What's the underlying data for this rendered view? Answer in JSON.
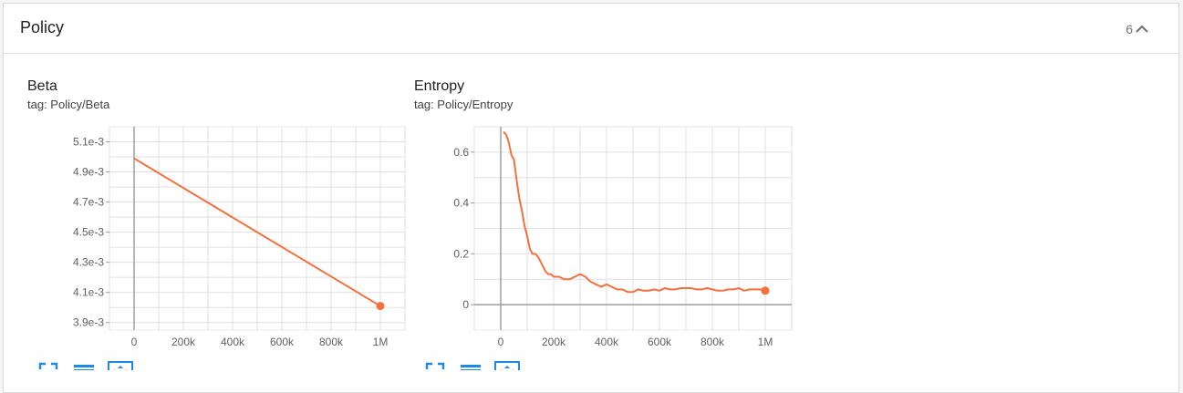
{
  "section": {
    "title": "Policy",
    "count": "6"
  },
  "charts": [
    {
      "title": "Beta",
      "tag": "tag: Policy/Beta",
      "color": "#f4703c",
      "chart_data": {
        "type": "line",
        "title": "Beta",
        "xlabel": "",
        "ylabel": "",
        "xlim": [
          -100000,
          1100000
        ],
        "ylim": [
          0.00385,
          0.0052
        ],
        "xticks": [
          0,
          200000,
          400000,
          600000,
          800000,
          1000000
        ],
        "xtick_labels": [
          "0",
          "200k",
          "400k",
          "600k",
          "800k",
          "1M"
        ],
        "yticks": [
          0.0039,
          0.0041,
          0.0043,
          0.0045,
          0.0047,
          0.0049,
          0.0051
        ],
        "ytick_labels": [
          "3.9e-3",
          "4.1e-3",
          "4.3e-3",
          "4.5e-3",
          "4.7e-3",
          "4.9e-3",
          "5.1e-3"
        ],
        "series": [
          {
            "name": "Policy/Beta",
            "x": [
              0,
              1000000
            ],
            "y": [
              0.00499,
              0.00401
            ]
          }
        ]
      }
    },
    {
      "title": "Entropy",
      "tag": "tag: Policy/Entropy",
      "color": "#f4703c",
      "chart_data": {
        "type": "line",
        "title": "Entropy",
        "xlabel": "",
        "ylabel": "",
        "xlim": [
          -100000,
          1100000
        ],
        "ylim": [
          -0.1,
          0.7
        ],
        "xticks": [
          0,
          200000,
          400000,
          600000,
          800000,
          1000000
        ],
        "xtick_labels": [
          "0",
          "200k",
          "400k",
          "600k",
          "800k",
          "1M"
        ],
        "yticks": [
          0,
          0.2,
          0.4,
          0.6
        ],
        "ytick_labels": [
          "0",
          "0.2",
          "0.4",
          "0.6"
        ],
        "series": [
          {
            "name": "Policy/Entropy",
            "x": [
              10000,
              20000,
              30000,
              40000,
              50000,
              60000,
              70000,
              80000,
              90000,
              100000,
              110000,
              120000,
              130000,
              140000,
              150000,
              160000,
              170000,
              180000,
              190000,
              200000,
              220000,
              240000,
              260000,
              280000,
              300000,
              320000,
              340000,
              360000,
              380000,
              400000,
              420000,
              440000,
              460000,
              480000,
              500000,
              520000,
              540000,
              560000,
              580000,
              600000,
              620000,
              640000,
              660000,
              680000,
              700000,
              720000,
              740000,
              760000,
              780000,
              800000,
              820000,
              840000,
              860000,
              880000,
              900000,
              920000,
              940000,
              960000,
              980000,
              1000000
            ],
            "y": [
              0.68,
              0.67,
              0.64,
              0.59,
              0.57,
              0.49,
              0.42,
              0.37,
              0.31,
              0.27,
              0.22,
              0.2,
              0.2,
              0.19,
              0.17,
              0.15,
              0.13,
              0.12,
              0.12,
              0.11,
              0.11,
              0.1,
              0.1,
              0.11,
              0.12,
              0.11,
              0.09,
              0.08,
              0.07,
              0.08,
              0.07,
              0.06,
              0.06,
              0.05,
              0.05,
              0.06,
              0.055,
              0.055,
              0.06,
              0.055,
              0.065,
              0.06,
              0.06,
              0.065,
              0.065,
              0.065,
              0.06,
              0.06,
              0.065,
              0.06,
              0.055,
              0.055,
              0.06,
              0.06,
              0.065,
              0.055,
              0.06,
              0.06,
              0.06,
              0.055
            ]
          }
        ]
      }
    }
  ],
  "toolbar": {
    "fullscreen_icon": "fullscreen-icon",
    "legend_icon": "list-icon",
    "fit_icon": "fit-to-domain-icon"
  }
}
